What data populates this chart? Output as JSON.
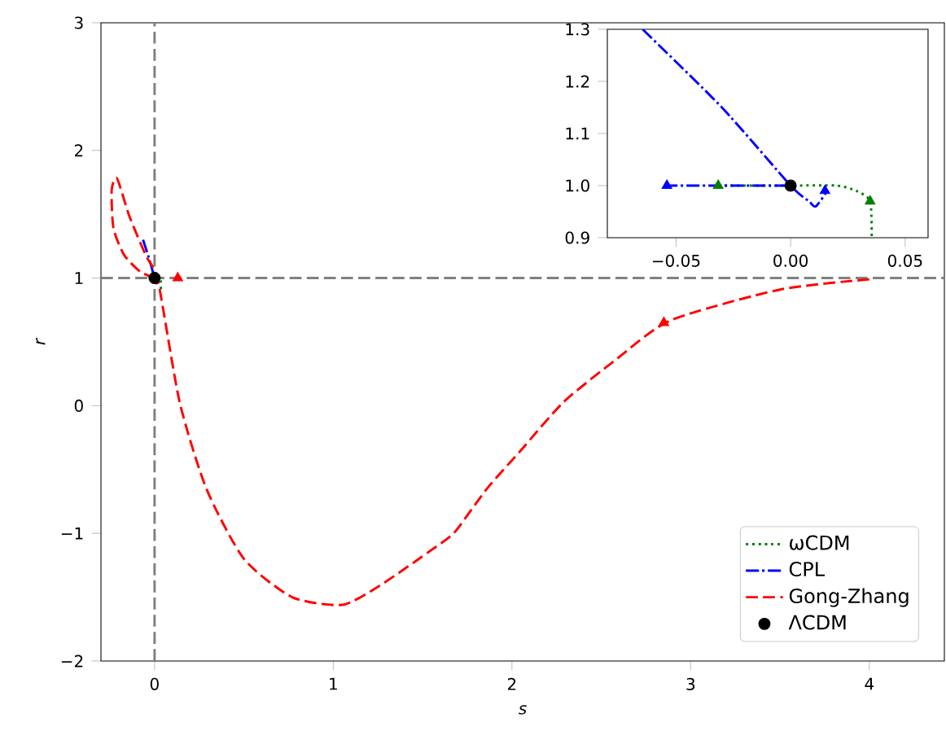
{
  "chart_data": [
    {
      "type": "line",
      "xlabel": "s",
      "ylabel": "r",
      "xlim": [
        -0.3,
        4.42
      ],
      "ylim": [
        -2,
        3
      ],
      "xticks": [
        0,
        1,
        2,
        3,
        4
      ],
      "yticks": [
        {
          "value": -2,
          "label": "−2"
        },
        {
          "value": -1,
          "label": "−1"
        },
        0,
        1,
        2,
        3
      ],
      "legend": "bottom right",
      "grid": false,
      "ref_lines": [
        {
          "axis": "x",
          "value": 0,
          "color": "#808080",
          "line_style": "dashed"
        },
        {
          "axis": "y",
          "value": 1,
          "color": "#808080",
          "line_style": "dashed"
        }
      ],
      "series": [
        {
          "name": "ωCDM",
          "color": "#008000",
          "line_style": "dotted",
          "marker": "none",
          "x": [
            -0.0316,
            0,
            0.02,
            0.0286,
            0.0347,
            0.0354
          ],
          "values": [
            1.0,
            1.0,
            1.0,
            0.99,
            0.97,
            0.9
          ]
        },
        {
          "name": "CPL",
          "color": "#0000ff",
          "line_style": "dashdot",
          "marker": "none",
          "x": [
            -0.0646,
            -0.03,
            0,
            0.008,
            0.011,
            0.016
          ],
          "values": [
            1.3,
            1.15,
            1.0,
            0.97,
            0.96,
            0.99
          ]
        },
        {
          "name": "Gong-Zhang",
          "color": "#ff0000",
          "line_style": "dashed",
          "marker": "none",
          "x": [
            4.0,
            3.5,
            2.89,
            2.59,
            2.29,
            2.05,
            1.86,
            1.68,
            1.56,
            1.26,
            1.05,
            0.77,
            0.5,
            0.29,
            0.14,
            0.02,
            -0.05,
            -0.14,
            -0.21,
            -0.24,
            -0.23,
            -0.17,
            -0.08,
            0.0
          ],
          "values": [
            0.99,
            0.91,
            0.67,
            0.37,
            0.03,
            -0.35,
            -0.65,
            -0.99,
            -1.12,
            -1.41,
            -1.56,
            -1.5,
            -1.2,
            -0.65,
            0.03,
            0.97,
            1.18,
            1.48,
            1.78,
            1.69,
            1.39,
            1.18,
            1.05,
            1.0
          ]
        },
        {
          "type": "scatter",
          "color": "#ff0000",
          "marker": "triangle",
          "x": [
            2.85,
            0.13
          ],
          "values": [
            0.65,
            1.0
          ]
        },
        {
          "name": "ΛCDM",
          "type": "scatter",
          "color": "#000000",
          "marker": "circle",
          "x": [
            0
          ],
          "values": [
            1
          ]
        }
      ]
    },
    {
      "type": "line",
      "xlim": [
        -0.08,
        0.06
      ],
      "ylim": [
        0.9,
        1.3
      ],
      "xticks": [
        {
          "value": -0.05,
          "label": "−0.05"
        },
        {
          "value": 0,
          "label": "0.00"
        },
        0.05
      ],
      "yticks": [
        0.9,
        {
          "value": 1.0,
          "label": "1.0"
        },
        1.1,
        1.2,
        1.3
      ],
      "legend": false,
      "grid": false,
      "series": [
        {
          "color": "#008000",
          "line_style": "dotted",
          "marker": "none",
          "x": [
            -0.0316,
            0,
            0.02,
            0.0286,
            0.0347,
            0.0354
          ],
          "values": [
            1.0,
            1.0,
            1.0,
            0.99,
            0.97,
            0.9
          ]
        },
        {
          "color": "#0000ff",
          "line_style": "dashdot",
          "marker": "none",
          "x": [
            -0.0646,
            -0.03,
            0,
            0.008,
            0.011,
            0.016,
            null,
            -0.055,
            0
          ],
          "values": [
            1.3,
            1.15,
            1.0,
            0.97,
            0.96,
            0.99,
            null,
            1.0,
            1.0
          ]
        },
        {
          "type": "scatter",
          "color": "#0000ff",
          "marker": "triangle",
          "x": [
            -0.054,
            0.015
          ],
          "values": [
            1.0,
            0.99
          ]
        },
        {
          "type": "scatter",
          "color": "#008000",
          "marker": "triangle",
          "x": [
            -0.0316,
            0.0347
          ],
          "values": [
            1.0,
            0.97
          ]
        },
        {
          "type": "scatter",
          "color": "#000000",
          "marker": "circle",
          "x": [
            0
          ],
          "values": [
            1
          ]
        }
      ]
    }
  ]
}
